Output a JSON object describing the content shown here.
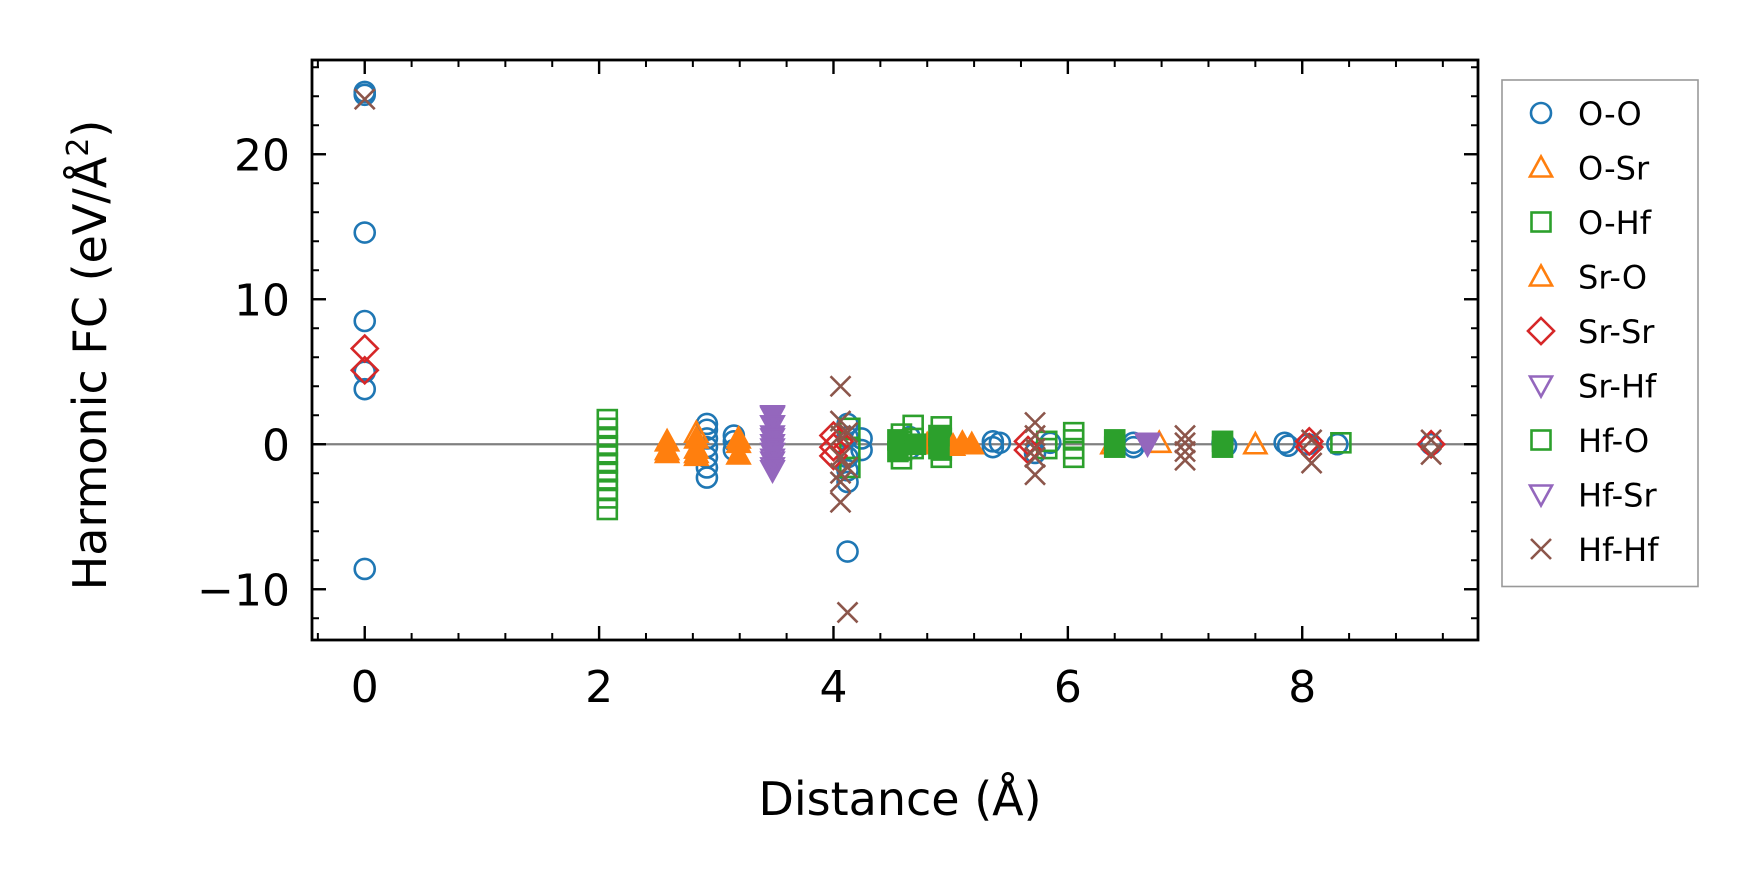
{
  "chart_data": {
    "type": "scatter",
    "title": "",
    "xlabel": "Distance (Å)",
    "ylabel": "Harmonic FC (eV/Å",
    "ylabel_sup": "2",
    "ylabel_close": ")",
    "xlim": [
      -0.45,
      9.5
    ],
    "ylim": [
      -13.5,
      26.5
    ],
    "xticks": [
      0,
      2,
      4,
      6,
      8
    ],
    "yticks": [
      -10,
      0,
      10,
      20
    ],
    "xtick_labels": [
      "0",
      "2",
      "4",
      "6",
      "8"
    ],
    "ytick_labels": [
      "−10",
      "0",
      "10",
      "20"
    ],
    "zero_line": true,
    "legend_position": "outside-right",
    "series": [
      {
        "name": "O-O",
        "marker": "circle",
        "color": "#1f77b4",
        "filled": false,
        "points": [
          [
            0,
            24.3
          ],
          [
            0,
            24.1
          ],
          [
            0,
            14.6
          ],
          [
            0,
            8.5
          ],
          [
            0,
            5.0
          ],
          [
            0,
            3.8
          ],
          [
            0,
            -8.6
          ],
          [
            2.92,
            1.4
          ],
          [
            2.92,
            1.0
          ],
          [
            2.92,
            0.4
          ],
          [
            2.92,
            -0.2
          ],
          [
            2.92,
            -0.9
          ],
          [
            2.92,
            -1.6
          ],
          [
            2.92,
            -2.3
          ],
          [
            3.15,
            0.6
          ],
          [
            3.15,
            0.2
          ],
          [
            3.15,
            -0.4
          ],
          [
            4.12,
            1.4
          ],
          [
            4.12,
            0.5
          ],
          [
            4.12,
            -0.9
          ],
          [
            4.12,
            -1.8
          ],
          [
            4.12,
            -2.6
          ],
          [
            4.12,
            -7.4
          ],
          [
            4.24,
            0.4
          ],
          [
            4.24,
            -0.4
          ],
          [
            4.65,
            0.5
          ],
          [
            4.65,
            -0.3
          ],
          [
            5.36,
            0.2
          ],
          [
            5.36,
            -0.2
          ],
          [
            5.42,
            0.1
          ],
          [
            5.72,
            -0.6
          ],
          [
            5.85,
            0.1
          ],
          [
            6.56,
            0.1
          ],
          [
            6.56,
            -0.2
          ],
          [
            7.32,
            0.1
          ],
          [
            7.35,
            -0.1
          ],
          [
            7.85,
            0.1
          ],
          [
            7.88,
            -0.1
          ],
          [
            8.05,
            0.0
          ],
          [
            8.3,
            0.0
          ],
          [
            9.1,
            0.0
          ]
        ]
      },
      {
        "name": "O-Sr",
        "marker": "triangle-up",
        "color": "#ff7f0e",
        "filled": false,
        "points": [
          [
            2.58,
            -0.4
          ],
          [
            2.83,
            0.8
          ],
          [
            2.83,
            -0.6
          ],
          [
            3.19,
            0.4
          ],
          [
            6.38,
            0.0
          ],
          [
            6.78,
            0.1
          ],
          [
            7.6,
            0.0
          ]
        ]
      },
      {
        "name": "O-Hf",
        "marker": "square",
        "color": "#2ca02c",
        "filled": false,
        "points": [
          [
            2.07,
            1.7
          ],
          [
            2.07,
            1.1
          ],
          [
            2.07,
            0.5
          ],
          [
            2.07,
            -0.1
          ],
          [
            2.07,
            -0.7
          ],
          [
            2.07,
            -1.3
          ],
          [
            2.07,
            -1.9
          ],
          [
            2.07,
            -2.5
          ],
          [
            2.07,
            -3.1
          ],
          [
            2.07,
            -3.7
          ],
          [
            2.07,
            -4.5
          ],
          [
            4.14,
            1.1
          ],
          [
            4.14,
            -0.3
          ],
          [
            4.14,
            -1.6
          ],
          [
            4.58,
            0.7
          ],
          [
            4.58,
            0.2
          ],
          [
            4.58,
            -0.4
          ],
          [
            4.58,
            -1.0
          ],
          [
            4.68,
            1.3
          ],
          [
            4.68,
            0.4
          ],
          [
            4.68,
            -0.3
          ],
          [
            4.92,
            1.2
          ],
          [
            4.92,
            0.4
          ],
          [
            4.92,
            -0.4
          ],
          [
            4.92,
            -0.9
          ],
          [
            5.82,
            0.2
          ],
          [
            5.82,
            -0.3
          ],
          [
            6.05,
            0.8
          ],
          [
            6.05,
            0.3
          ],
          [
            6.05,
            -0.3
          ],
          [
            6.05,
            -0.9
          ],
          [
            8.33,
            0.1
          ]
        ]
      },
      {
        "name": "Sr-O",
        "marker": "triangle-up",
        "color": "#ff7f0e",
        "filled": true,
        "points": [
          [
            2.58,
            0.2
          ],
          [
            2.58,
            -0.6
          ],
          [
            2.83,
            0.4
          ],
          [
            2.83,
            -0.3
          ],
          [
            2.83,
            -0.8
          ],
          [
            3.19,
            0.1
          ],
          [
            3.19,
            -0.7
          ],
          [
            4.8,
            0.0
          ],
          [
            4.88,
            0.2
          ],
          [
            5.02,
            -0.1
          ],
          [
            5.1,
            0.1
          ],
          [
            5.18,
            0.0
          ]
        ]
      },
      {
        "name": "Sr-Sr",
        "marker": "diamond",
        "color": "#d62728",
        "filled": false,
        "points": [
          [
            0,
            6.6
          ],
          [
            0,
            5.1
          ],
          [
            4.0,
            0.6
          ],
          [
            4.0,
            -0.2
          ],
          [
            4.0,
            -0.8
          ],
          [
            4.05,
            0.2
          ],
          [
            5.66,
            0.2
          ],
          [
            5.66,
            -0.4
          ],
          [
            8.06,
            0.2
          ],
          [
            8.06,
            -0.2
          ],
          [
            9.1,
            0.0
          ]
        ]
      },
      {
        "name": "Sr-Hf",
        "marker": "triangle-down",
        "color": "#9467bd",
        "filled": true,
        "points": [
          [
            3.48,
            1.9
          ],
          [
            3.48,
            1.3
          ],
          [
            3.48,
            0.6
          ],
          [
            3.48,
            0.0
          ],
          [
            3.48,
            -0.6
          ],
          [
            3.48,
            -1.2
          ],
          [
            3.48,
            -1.8
          ],
          [
            6.68,
            0.0
          ]
        ]
      },
      {
        "name": "Hf-O",
        "marker": "square",
        "color": "#2ca02c",
        "filled": true,
        "points": [
          [
            4.55,
            0.3
          ],
          [
            4.55,
            -0.5
          ],
          [
            4.7,
            0.0
          ],
          [
            4.9,
            0.6
          ],
          [
            4.9,
            -0.3
          ],
          [
            6.4,
            0.3
          ],
          [
            6.4,
            -0.2
          ],
          [
            7.32,
            0.2
          ],
          [
            7.32,
            -0.2
          ]
        ]
      },
      {
        "name": "Hf-Sr",
        "marker": "triangle-down",
        "color": "#9467bd",
        "filled": false,
        "points": [
          [
            3.48,
            2.0
          ],
          [
            3.48,
            1.3
          ],
          [
            3.48,
            0.4
          ],
          [
            3.48,
            -0.3
          ],
          [
            3.48,
            -1.0
          ],
          [
            3.48,
            -1.6
          ],
          [
            6.68,
            0.1
          ]
        ]
      },
      {
        "name": "Hf-Hf",
        "marker": "x",
        "color": "#8c564b",
        "filled": false,
        "points": [
          [
            0,
            23.8
          ],
          [
            4.06,
            4.0
          ],
          [
            4.06,
            1.6
          ],
          [
            4.06,
            0.6
          ],
          [
            4.06,
            -0.9
          ],
          [
            4.06,
            -2.0
          ],
          [
            4.06,
            -2.6
          ],
          [
            4.06,
            -4.0
          ],
          [
            4.12,
            -11.6
          ],
          [
            4.12,
            0.8
          ],
          [
            4.12,
            -1.6
          ],
          [
            5.72,
            1.5
          ],
          [
            5.72,
            0.6
          ],
          [
            5.72,
            -0.3
          ],
          [
            5.72,
            -0.9
          ],
          [
            5.72,
            -2.1
          ],
          [
            7.0,
            0.6
          ],
          [
            7.0,
            0.1
          ],
          [
            7.0,
            -0.5
          ],
          [
            7.0,
            -1.1
          ],
          [
            8.08,
            0.3
          ],
          [
            8.08,
            -1.3
          ],
          [
            9.1,
            0.3
          ],
          [
            9.1,
            -0.7
          ]
        ]
      }
    ]
  }
}
